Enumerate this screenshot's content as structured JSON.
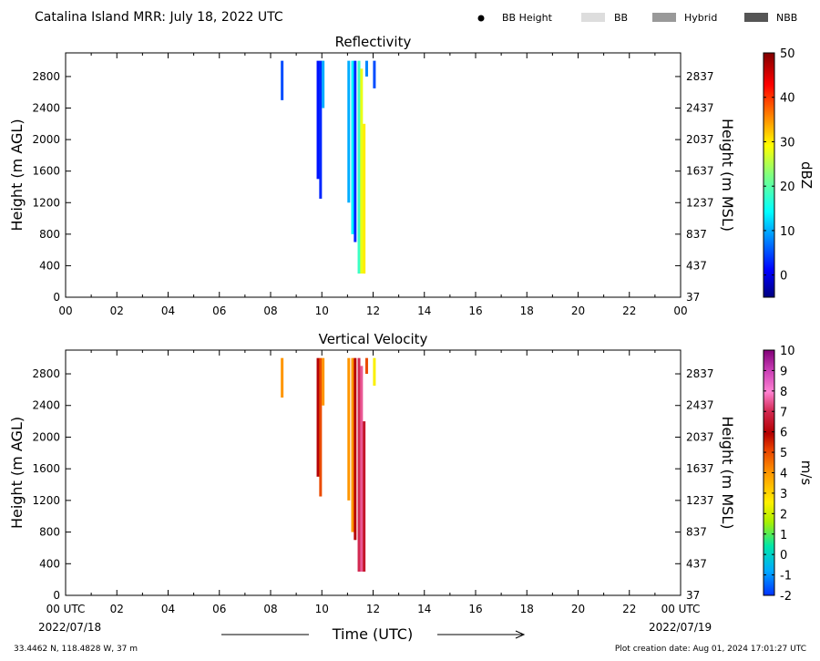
{
  "header": {
    "title": "Catalina Island MRR:  July 18, 2022 UTC",
    "legend": [
      {
        "label": "BB Height",
        "kind": "dot",
        "color": "#000000"
      },
      {
        "label": "BB",
        "kind": "box",
        "color": "#dddddd"
      },
      {
        "label": "Hybrid",
        "kind": "box",
        "color": "#999999"
      },
      {
        "label": "NBB",
        "kind": "box",
        "color": "#555555"
      }
    ]
  },
  "footer": {
    "xlabel": "Time (UTC)",
    "start_date": "2022/07/18",
    "end_date": "2022/07/19",
    "location": "33.4462 N, 118.4828 W, 37 m",
    "creation": "Plot creation date: Aug 01, 2024 17:01:27 UTC"
  },
  "chart_data": [
    {
      "type": "heatmap",
      "title": "Reflectivity",
      "ylabel": "Height (m AGL)",
      "ylabel_right": "Height (m MSL)",
      "ylim": [
        0,
        3100
      ],
      "xlim": [
        0,
        24
      ],
      "x_ticks": [
        "00",
        "02",
        "04",
        "06",
        "08",
        "10",
        "12",
        "14",
        "16",
        "18",
        "20",
        "22",
        "00"
      ],
      "y_ticks_left": [
        "0",
        "400",
        "800",
        "1200",
        "1600",
        "2000",
        "2400",
        "2800"
      ],
      "y_ticks_right": [
        "37",
        "437",
        "837",
        "1237",
        "1637",
        "2037",
        "2437",
        "2837"
      ],
      "colorbar": {
        "label": "dBZ",
        "min": -5,
        "max": 50,
        "ticks": [
          "0",
          "10",
          "20",
          "30",
          "40",
          "50"
        ],
        "tick_values": [
          0,
          10,
          20,
          30,
          40,
          50
        ]
      },
      "streaks": [
        {
          "x": 8.45,
          "y0": 2500,
          "y1": 3000,
          "v": 5
        },
        {
          "x": 9.85,
          "y0": 1500,
          "y1": 3000,
          "v": 2
        },
        {
          "x": 9.95,
          "y0": 1250,
          "y1": 3000,
          "v": 3
        },
        {
          "x": 10.05,
          "y0": 2400,
          "y1": 3000,
          "v": 10
        },
        {
          "x": 11.05,
          "y0": 1200,
          "y1": 3000,
          "v": 10
        },
        {
          "x": 11.2,
          "y0": 800,
          "y1": 3000,
          "v": 14
        },
        {
          "x": 11.3,
          "y0": 700,
          "y1": 3000,
          "v": 3
        },
        {
          "x": 11.45,
          "y0": 300,
          "y1": 3000,
          "v": 18
        },
        {
          "x": 11.55,
          "y0": 300,
          "y1": 2900,
          "v": 28
        },
        {
          "x": 11.65,
          "y0": 300,
          "y1": 2200,
          "v": 30
        },
        {
          "x": 11.75,
          "y0": 2800,
          "y1": 3000,
          "v": 8
        },
        {
          "x": 12.05,
          "y0": 2650,
          "y1": 3000,
          "v": 5
        }
      ]
    },
    {
      "type": "heatmap",
      "title": "Vertical Velocity",
      "ylabel": "Height (m AGL)",
      "ylabel_right": "Height (m MSL)",
      "ylim": [
        0,
        3100
      ],
      "xlim": [
        0,
        24
      ],
      "x_ticks": [
        "00 UTC",
        "02",
        "04",
        "06",
        "08",
        "10",
        "12",
        "14",
        "16",
        "18",
        "20",
        "22",
        "00 UTC"
      ],
      "y_ticks_left": [
        "0",
        "400",
        "800",
        "1200",
        "1600",
        "2000",
        "2400",
        "2800"
      ],
      "y_ticks_right": [
        "37",
        "437",
        "837",
        "1237",
        "1637",
        "2037",
        "2437",
        "2837"
      ],
      "colorbar": {
        "label": "m/s",
        "min": -2,
        "max": 10,
        "ticks": [
          "-2",
          "-1",
          "0",
          "1",
          "2",
          "3",
          "4",
          "5",
          "6",
          "7",
          "8",
          "9",
          "10"
        ],
        "tick_values": [
          -2,
          -1,
          0,
          1,
          2,
          3,
          4,
          5,
          6,
          7,
          8,
          9,
          10
        ]
      },
      "streaks": [
        {
          "x": 8.45,
          "y0": 2500,
          "y1": 3000,
          "v": 4
        },
        {
          "x": 9.85,
          "y0": 1500,
          "y1": 3000,
          "v": 6
        },
        {
          "x": 9.95,
          "y0": 1250,
          "y1": 3000,
          "v": 5
        },
        {
          "x": 10.05,
          "y0": 2400,
          "y1": 3000,
          "v": 4
        },
        {
          "x": 11.05,
          "y0": 1200,
          "y1": 3000,
          "v": 4
        },
        {
          "x": 11.2,
          "y0": 800,
          "y1": 3000,
          "v": 4
        },
        {
          "x": 11.3,
          "y0": 700,
          "y1": 3000,
          "v": 6
        },
        {
          "x": 11.45,
          "y0": 300,
          "y1": 3000,
          "v": 7
        },
        {
          "x": 11.55,
          "y0": 300,
          "y1": 2900,
          "v": 7.5
        },
        {
          "x": 11.65,
          "y0": 300,
          "y1": 2200,
          "v": 6.5
        },
        {
          "x": 11.75,
          "y0": 2800,
          "y1": 3000,
          "v": 5
        },
        {
          "x": 12.05,
          "y0": 2650,
          "y1": 3000,
          "v": 2.5
        }
      ]
    }
  ]
}
